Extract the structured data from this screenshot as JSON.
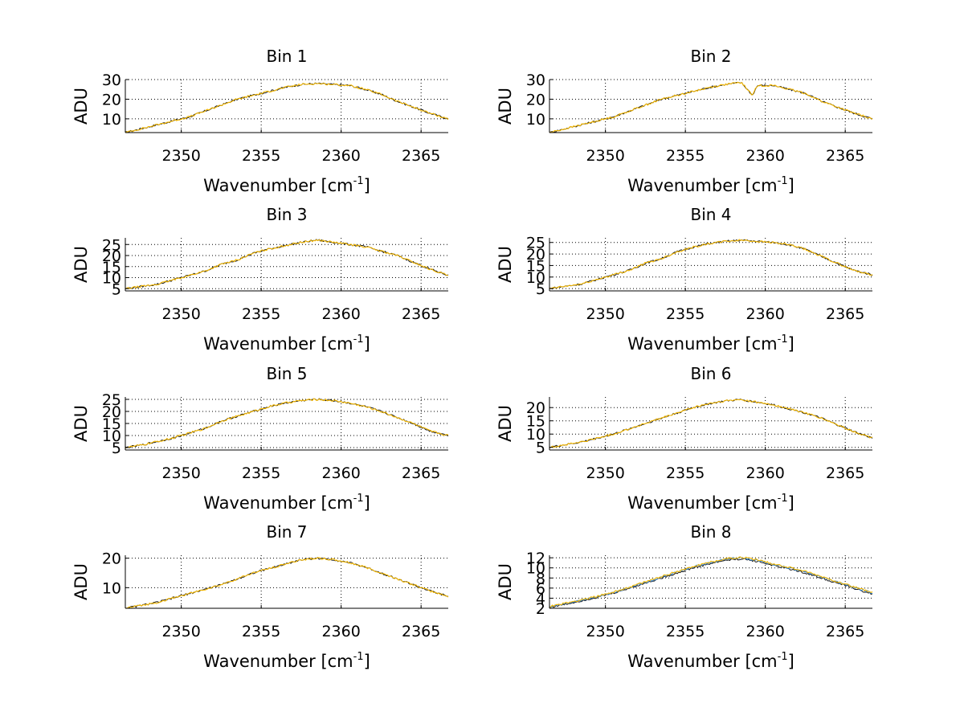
{
  "colors": {
    "background": "#ffffff",
    "axes": "#000000",
    "grid": "#000000",
    "trace_orange": "#f5b800",
    "trace_dark": "#1a1a1a",
    "trace_blue": "#2a7fd4"
  },
  "chart_data": [
    {
      "type": "line",
      "title": "Bin 1",
      "xlabel": "Wavenumber [cm",
      "xlabel_sup": "-1",
      "xlabel_close": "]",
      "ylabel": "ADU",
      "grid": true,
      "xlim": [
        2346.5,
        2366.7
      ],
      "ylim": [
        3,
        30
      ],
      "xticks": [
        2350,
        2355,
        2360,
        2365
      ],
      "yticks": [
        10,
        20,
        30
      ],
      "series": [
        {
          "color": "#1a1a1a",
          "x": [
            2346.5,
            2347.5,
            2348.5,
            2349.5,
            2350.5,
            2351.5,
            2352.5,
            2353.5,
            2354.5,
            2355.5,
            2356.5,
            2357.5,
            2358.5,
            2359.5,
            2360.5,
            2361.5,
            2362.5,
            2363.5,
            2364.5,
            2365.5,
            2366.7
          ],
          "y": [
            3,
            5,
            7,
            9,
            11,
            14,
            17,
            20,
            22,
            24,
            26,
            27.5,
            28,
            27.5,
            27,
            25,
            22.5,
            19,
            16,
            13,
            10
          ]
        },
        {
          "color": "#f5b800",
          "x": [
            2346.5,
            2347.5,
            2348.5,
            2349.5,
            2350.5,
            2351.5,
            2352.5,
            2353.5,
            2354.5,
            2355.5,
            2356.5,
            2357.5,
            2358.5,
            2359.5,
            2360.5,
            2361.5,
            2362.5,
            2363.5,
            2364.5,
            2365.5,
            2366.7
          ],
          "y": [
            3,
            5,
            7,
            9,
            11,
            14,
            17,
            20,
            22,
            24,
            26,
            27.5,
            28,
            27.5,
            27,
            25,
            22.5,
            19,
            16,
            13,
            10
          ]
        }
      ]
    },
    {
      "type": "line",
      "title": "Bin 2",
      "xlabel": "Wavenumber [cm",
      "xlabel_sup": "-1",
      "xlabel_close": "]",
      "ylabel": "ADU",
      "grid": true,
      "xlim": [
        2346.5,
        2366.7
      ],
      "ylim": [
        3,
        30
      ],
      "xticks": [
        2350,
        2355,
        2360,
        2365
      ],
      "yticks": [
        10,
        20,
        30
      ],
      "series": [
        {
          "color": "#1a1a1a",
          "x": [
            2346.5,
            2347.5,
            2348.5,
            2349.5,
            2350.5,
            2351.5,
            2352.5,
            2353.5,
            2354.5,
            2355.5,
            2356.5,
            2357.5,
            2358.5,
            2359.2,
            2359.5,
            2360.5,
            2361.5,
            2362.5,
            2363.5,
            2364.5,
            2365.5,
            2366.7
          ],
          "y": [
            3,
            5,
            7,
            9,
            11,
            14,
            17,
            20,
            22,
            24,
            26,
            27.5,
            28.5,
            22,
            27,
            27,
            25,
            23,
            19,
            16,
            13,
            10
          ]
        },
        {
          "color": "#f5b800",
          "x": [
            2346.5,
            2347.5,
            2348.5,
            2349.5,
            2350.5,
            2351.5,
            2352.5,
            2353.5,
            2354.5,
            2355.5,
            2356.5,
            2357.5,
            2358.5,
            2359.2,
            2359.5,
            2360.5,
            2361.5,
            2362.5,
            2363.5,
            2364.5,
            2365.5,
            2366.7
          ],
          "y": [
            3,
            5,
            7,
            9,
            11,
            14,
            17,
            20,
            22,
            24,
            26,
            27.5,
            28.5,
            22,
            27,
            27,
            25,
            23,
            19,
            16,
            13,
            10
          ]
        }
      ]
    },
    {
      "type": "line",
      "title": "Bin 3",
      "xlabel": "Wavenumber [cm",
      "xlabel_sup": "-1",
      "xlabel_close": "]",
      "ylabel": "ADU",
      "grid": true,
      "xlim": [
        2346.5,
        2366.7
      ],
      "ylim": [
        4,
        28
      ],
      "xticks": [
        2350,
        2355,
        2360,
        2365
      ],
      "yticks": [
        5,
        10,
        15,
        20,
        25
      ],
      "series": [
        {
          "color": "#1a1a1a",
          "x": [
            2346.5,
            2347.5,
            2348.5,
            2349.5,
            2350.5,
            2351.5,
            2352.5,
            2353.5,
            2354.5,
            2355.5,
            2356.5,
            2357.5,
            2358.5,
            2359.5,
            2360.5,
            2361.5,
            2362.5,
            2363.5,
            2364.5,
            2365.5,
            2366.7
          ],
          "y": [
            5,
            6,
            7,
            9,
            11,
            13,
            16,
            18,
            21,
            23,
            24.5,
            26,
            27,
            26,
            25,
            24,
            22,
            20,
            17,
            14,
            11
          ]
        },
        {
          "color": "#f5b800",
          "x": [
            2346.5,
            2347.5,
            2348.5,
            2349.5,
            2350.5,
            2351.5,
            2352.5,
            2353.5,
            2354.5,
            2355.5,
            2356.5,
            2357.5,
            2358.5,
            2359.5,
            2360.5,
            2361.5,
            2362.5,
            2363.5,
            2364.5,
            2365.5,
            2366.7
          ],
          "y": [
            5,
            6,
            7,
            9,
            11,
            13,
            16,
            18,
            21,
            23,
            24.5,
            26,
            27,
            26,
            25,
            24,
            22,
            20,
            17,
            14,
            11
          ]
        }
      ]
    },
    {
      "type": "line",
      "title": "Bin 4",
      "xlabel": "Wavenumber [cm",
      "xlabel_sup": "-1",
      "xlabel_close": "]",
      "ylabel": "ADU",
      "grid": true,
      "xlim": [
        2346.5,
        2366.7
      ],
      "ylim": [
        4,
        27
      ],
      "xticks": [
        2350,
        2355,
        2360,
        2365
      ],
      "yticks": [
        5,
        10,
        15,
        20,
        25
      ],
      "series": [
        {
          "color": "#1a1a1a",
          "x": [
            2346.5,
            2347.5,
            2348.5,
            2349.5,
            2350.5,
            2351.5,
            2352.5,
            2353.5,
            2354.5,
            2355.5,
            2356.5,
            2357.5,
            2358.5,
            2359.5,
            2360.5,
            2361.5,
            2362.5,
            2363.5,
            2364.5,
            2365.5,
            2366.7
          ],
          "y": [
            5,
            6,
            7,
            9,
            11,
            13,
            16,
            18,
            21,
            23,
            24.5,
            25.5,
            26,
            25.5,
            25,
            24,
            22,
            19,
            16,
            13,
            11
          ]
        },
        {
          "color": "#f5b800",
          "x": [
            2346.5,
            2347.5,
            2348.5,
            2349.5,
            2350.5,
            2351.5,
            2352.5,
            2353.5,
            2354.5,
            2355.5,
            2356.5,
            2357.5,
            2358.5,
            2359.5,
            2360.5,
            2361.5,
            2362.5,
            2363.5,
            2364.5,
            2365.5,
            2366.7
          ],
          "y": [
            5,
            6,
            7,
            9,
            11,
            13,
            16,
            18,
            21,
            23,
            24.5,
            25.5,
            26,
            25.5,
            25,
            24,
            22,
            19,
            16,
            13,
            11
          ]
        }
      ]
    },
    {
      "type": "line",
      "title": "Bin 5",
      "xlabel": "Wavenumber [cm",
      "xlabel_sup": "-1",
      "xlabel_close": "]",
      "ylabel": "ADU",
      "grid": true,
      "xlim": [
        2346.5,
        2366.7
      ],
      "ylim": [
        4,
        26
      ],
      "xticks": [
        2350,
        2355,
        2360,
        2365
      ],
      "yticks": [
        5,
        10,
        15,
        20,
        25
      ],
      "series": [
        {
          "color": "#1a1a1a",
          "x": [
            2346.5,
            2347.5,
            2348.5,
            2349.5,
            2350.5,
            2351.5,
            2352.5,
            2353.5,
            2354.5,
            2355.5,
            2356.5,
            2357.5,
            2358.5,
            2359.5,
            2360.5,
            2361.5,
            2362.5,
            2363.5,
            2364.5,
            2365.5,
            2366.7
          ],
          "y": [
            5,
            6,
            7.5,
            9,
            11,
            13,
            16,
            18,
            20,
            22,
            23.5,
            24.5,
            25,
            24.5,
            23.5,
            22,
            20,
            17.5,
            15,
            12,
            10
          ]
        },
        {
          "color": "#f5b800",
          "x": [
            2346.5,
            2347.5,
            2348.5,
            2349.5,
            2350.5,
            2351.5,
            2352.5,
            2353.5,
            2354.5,
            2355.5,
            2356.5,
            2357.5,
            2358.5,
            2359.5,
            2360.5,
            2361.5,
            2362.5,
            2363.5,
            2364.5,
            2365.5,
            2366.7
          ],
          "y": [
            5,
            6,
            7.5,
            9,
            11,
            13,
            16,
            18,
            20,
            22,
            23.5,
            24.5,
            25,
            24.5,
            23.5,
            22,
            20,
            17.5,
            15,
            12,
            10
          ]
        }
      ]
    },
    {
      "type": "line",
      "title": "Bin 6",
      "xlabel": "Wavenumber [cm",
      "xlabel_sup": "-1",
      "xlabel_close": "]",
      "ylabel": "ADU",
      "grid": true,
      "xlim": [
        2346.5,
        2366.7
      ],
      "ylim": [
        4,
        24
      ],
      "xticks": [
        2350,
        2355,
        2360,
        2365
      ],
      "yticks": [
        5,
        10,
        15,
        20
      ],
      "series": [
        {
          "color": "#1a1a1a",
          "x": [
            2346.5,
            2347.5,
            2348.5,
            2349.5,
            2350.5,
            2351.5,
            2352.5,
            2353.5,
            2354.5,
            2355.5,
            2356.5,
            2357.5,
            2358.5,
            2359.5,
            2360.5,
            2361.5,
            2362.5,
            2363.5,
            2364.5,
            2365.5,
            2366.7
          ],
          "y": [
            5,
            6,
            7,
            8.5,
            10,
            12,
            14,
            16,
            18,
            20,
            21.5,
            22.5,
            23,
            22,
            21,
            19.5,
            18,
            16,
            13.5,
            11,
            8.5
          ]
        },
        {
          "color": "#f5b800",
          "x": [
            2346.5,
            2347.5,
            2348.5,
            2349.5,
            2350.5,
            2351.5,
            2352.5,
            2353.5,
            2354.5,
            2355.5,
            2356.5,
            2357.5,
            2358.5,
            2359.5,
            2360.5,
            2361.5,
            2362.5,
            2363.5,
            2364.5,
            2365.5,
            2366.7
          ],
          "y": [
            5,
            6,
            7,
            8.5,
            10,
            12,
            14,
            16,
            18,
            20,
            21.5,
            22.5,
            23,
            22,
            21,
            19.5,
            18,
            16,
            13.5,
            11,
            8.5
          ]
        }
      ]
    },
    {
      "type": "line",
      "title": "Bin 7",
      "xlabel": "Wavenumber [cm",
      "xlabel_sup": "-1",
      "xlabel_close": "]",
      "ylabel": "ADU",
      "grid": true,
      "xlim": [
        2346.5,
        2366.7
      ],
      "ylim": [
        3,
        21
      ],
      "xticks": [
        2350,
        2355,
        2360,
        2365
      ],
      "yticks": [
        10,
        20
      ],
      "series": [
        {
          "color": "#1a1a1a",
          "x": [
            2346.5,
            2347.5,
            2348.5,
            2349.5,
            2350.5,
            2351.5,
            2352.5,
            2353.5,
            2354.5,
            2355.5,
            2356.5,
            2357.5,
            2358.5,
            2359.5,
            2360.5,
            2361.5,
            2362.5,
            2363.5,
            2364.5,
            2365.5,
            2366.7
          ],
          "y": [
            3,
            4,
            5,
            6.5,
            8,
            9.5,
            11,
            13,
            15,
            16.5,
            18,
            19.5,
            20,
            19.5,
            18.5,
            17,
            15,
            13,
            11,
            9,
            7
          ]
        },
        {
          "color": "#f5b800",
          "x": [
            2346.5,
            2347.5,
            2348.5,
            2349.5,
            2350.5,
            2351.5,
            2352.5,
            2353.5,
            2354.5,
            2355.5,
            2356.5,
            2357.5,
            2358.5,
            2359.5,
            2360.5,
            2361.5,
            2362.5,
            2363.5,
            2364.5,
            2365.5,
            2366.7
          ],
          "y": [
            3,
            4,
            5,
            6.5,
            8,
            9.5,
            11,
            13,
            15,
            16.5,
            18,
            19.5,
            20,
            19.5,
            18.5,
            17,
            15,
            13,
            11,
            9,
            7
          ]
        }
      ]
    },
    {
      "type": "line",
      "title": "Bin 8",
      "xlabel": "Wavenumber [cm",
      "xlabel_sup": "-1",
      "xlabel_close": "]",
      "ylabel": "ADU",
      "grid": true,
      "xlim": [
        2346.5,
        2366.7
      ],
      "ylim": [
        2,
        12.5
      ],
      "xticks": [
        2350,
        2355,
        2360,
        2365
      ],
      "yticks": [
        2,
        4,
        6,
        8,
        10,
        12
      ],
      "series": [
        {
          "color": "#1a1a1a",
          "x": [
            2346.5,
            2347.5,
            2348.5,
            2349.5,
            2350.5,
            2351.5,
            2352.5,
            2353.5,
            2354.5,
            2355.5,
            2356.5,
            2357.5,
            2358.5,
            2359.5,
            2360.5,
            2361.5,
            2362.5,
            2363.5,
            2364.5,
            2365.5,
            2366.7
          ],
          "y": [
            2.2,
            2.8,
            3.5,
            4.2,
            5,
            6,
            7,
            8,
            9,
            10,
            10.8,
            11.5,
            11.8,
            11.3,
            10.5,
            9.8,
            9,
            8,
            7,
            6,
            4.8
          ]
        },
        {
          "color": "#2a7fd4",
          "x": [
            2346.5,
            2347.5,
            2348.5,
            2349.5,
            2350.5,
            2351.5,
            2352.5,
            2353.5,
            2354.5,
            2355.5,
            2356.5,
            2357.5,
            2358.5,
            2359.5,
            2360.5,
            2361.5,
            2362.5,
            2363.5,
            2364.5,
            2365.5,
            2366.7
          ],
          "y": [
            2.3,
            2.9,
            3.6,
            4.3,
            5.1,
            6.1,
            7.1,
            8.2,
            9.2,
            10.2,
            11,
            11.7,
            12,
            11.5,
            10.7,
            10,
            9.2,
            8.2,
            7.2,
            6.2,
            5
          ]
        },
        {
          "color": "#f5b800",
          "x": [
            2346.5,
            2347.5,
            2348.5,
            2349.5,
            2350.5,
            2351.5,
            2352.5,
            2353.5,
            2354.5,
            2355.5,
            2356.5,
            2357.5,
            2358.5,
            2359.5,
            2360.5,
            2361.5,
            2362.5,
            2363.5,
            2364.5,
            2365.5,
            2366.7
          ],
          "y": [
            2.4,
            3,
            3.7,
            4.4,
            5.2,
            6.2,
            7.2,
            8.3,
            9.3,
            10.3,
            11.1,
            11.8,
            12.1,
            11.6,
            10.8,
            10.1,
            9.3,
            8.3,
            7.3,
            6.3,
            5.1
          ]
        }
      ]
    }
  ]
}
